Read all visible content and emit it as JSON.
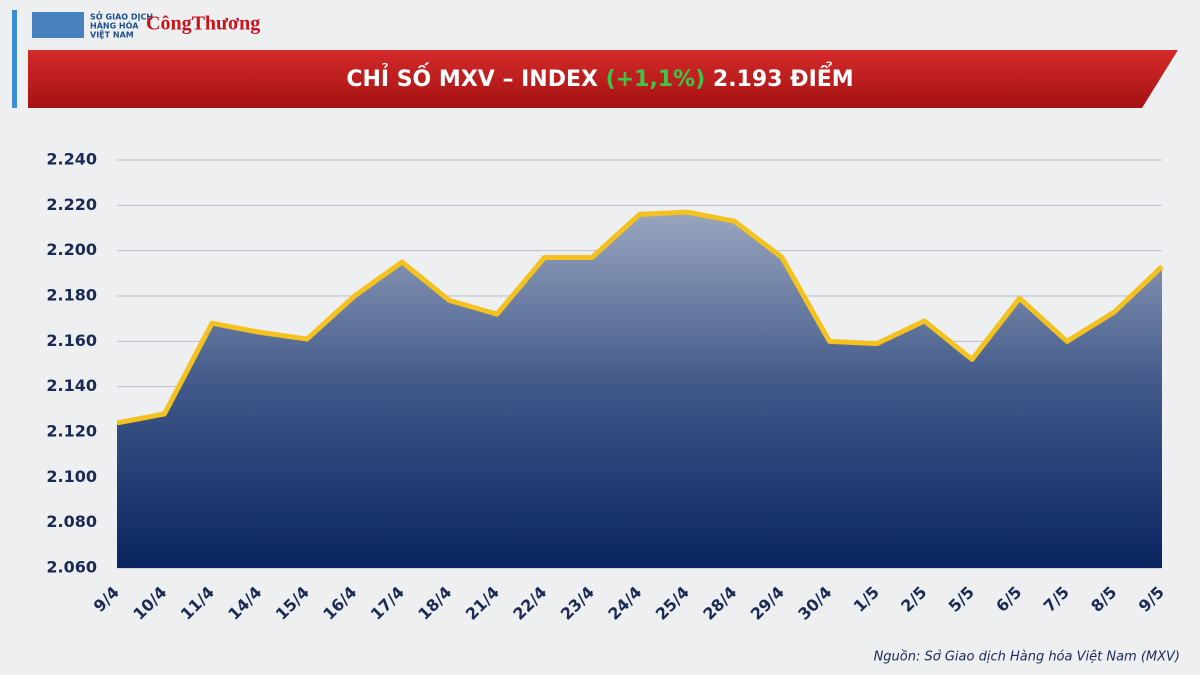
{
  "chart_data": {
    "type": "area",
    "logo": {
      "org_lines": [
        "SỞ GIAO DỊCH",
        "HÀNG HÓA",
        "VIỆT NAM"
      ],
      "brand": "CôngThương"
    },
    "title_parts": [
      "CHỈ SỐ MXV – INDEX",
      "(+1,1%)",
      "2.193 ĐIỂM"
    ],
    "source": "Nguồn: Sở Giao dịch Hàng hóa Việt Nam (MXV)",
    "categories": [
      "9/4",
      "10/4",
      "11/4",
      "14/4",
      "15/4",
      "16/4",
      "17/4",
      "18/4",
      "21/4",
      "22/4",
      "23/4",
      "24/4",
      "25/4",
      "28/4",
      "29/4",
      "30/4",
      "1/5",
      "2/5",
      "5/5",
      "6/5",
      "7/5",
      "8/5",
      "9/5"
    ],
    "values": [
      2124,
      2128,
      2168,
      2164,
      2161,
      2180,
      2195,
      2178,
      2172,
      2197,
      2197,
      2216,
      2217,
      2213,
      2197,
      2160,
      2159,
      2169,
      2152,
      2179,
      2160,
      2173,
      2193
    ],
    "color": "#f4c21f",
    "ylim": [
      2060,
      2240
    ],
    "yticks": [
      {
        "value": 2060,
        "label": "2.060"
      },
      {
        "value": 2080,
        "label": "2.080"
      },
      {
        "value": 2100,
        "label": "2.100"
      },
      {
        "value": 2120,
        "label": "2.120"
      },
      {
        "value": 2140,
        "label": "2.140"
      },
      {
        "value": 2160,
        "label": "2.160"
      },
      {
        "value": 2180,
        "label": "2.180"
      },
      {
        "value": 2200,
        "label": "2.200"
      },
      {
        "value": 2220,
        "label": "2.220"
      },
      {
        "value": 2240,
        "label": "2.240"
      }
    ],
    "grid": true
  }
}
